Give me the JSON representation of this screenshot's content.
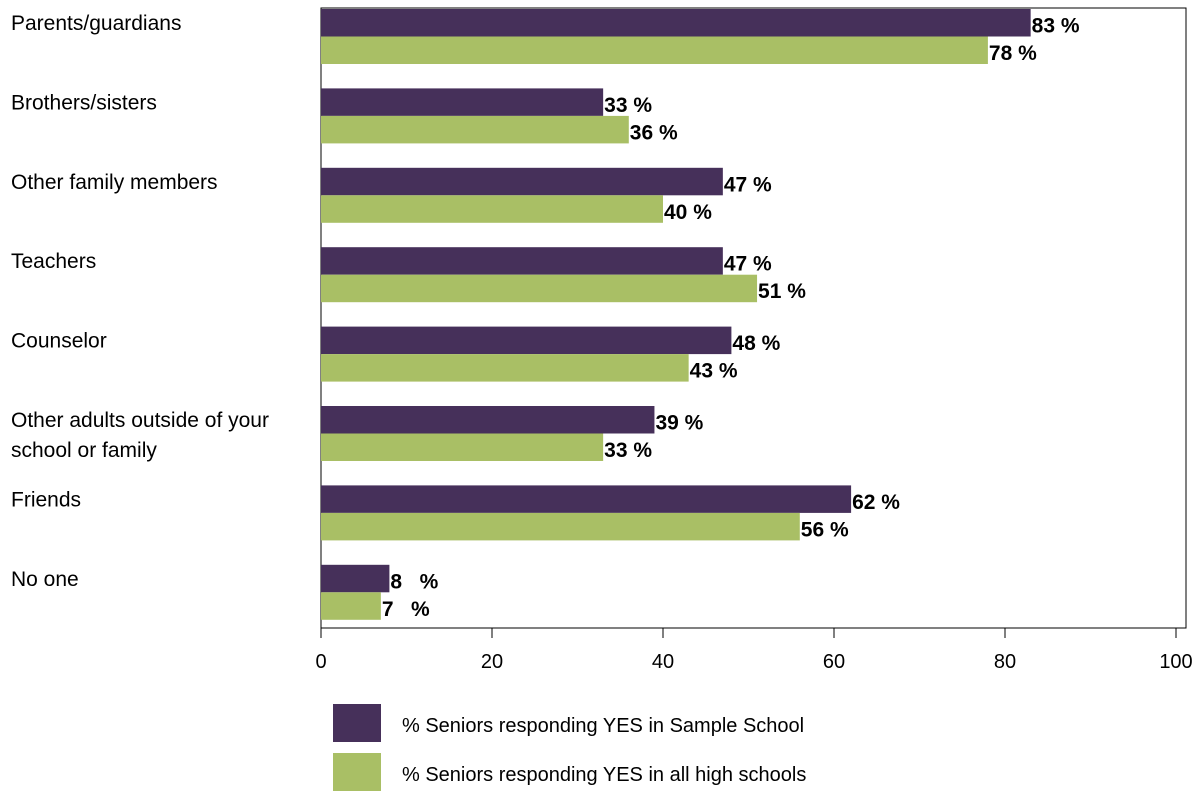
{
  "chart_data": {
    "type": "bar",
    "orientation": "horizontal",
    "categories": [
      [
        "Parents/guardians"
      ],
      [
        "Brothers/sisters"
      ],
      [
        "Other family members"
      ],
      [
        "Teachers"
      ],
      [
        "Counselor"
      ],
      [
        "Other adults outside of your",
        "school or family"
      ],
      [
        "Friends"
      ],
      [
        "No one"
      ]
    ],
    "series": [
      {
        "name": "% Seniors responding YES in Sample School",
        "color": "#46305a",
        "values": [
          83,
          33,
          47,
          47,
          48,
          39,
          62,
          8
        ],
        "labels": [
          "83 %",
          "33 %",
          "47 %",
          "47 %",
          "48 %",
          "39 %",
          "62 %",
          "8   %"
        ]
      },
      {
        "name": "% Seniors responding YES in all high schools",
        "color": "#a9bf65",
        "values": [
          78,
          36,
          40,
          51,
          43,
          33,
          56,
          7
        ],
        "labels": [
          "78 %",
          "36 %",
          "40 %",
          "51 %",
          "43 %",
          "33 %",
          "56 %",
          "7   %"
        ]
      }
    ],
    "xlim": [
      0,
      100
    ],
    "xticks": [
      0,
      20,
      40,
      60,
      80,
      100
    ],
    "xtick_labels": [
      "0",
      "20",
      "40",
      "60",
      "80",
      "100"
    ],
    "title": "",
    "xlabel": "",
    "ylabel": "",
    "grid": false,
    "legend_position": "bottom"
  }
}
